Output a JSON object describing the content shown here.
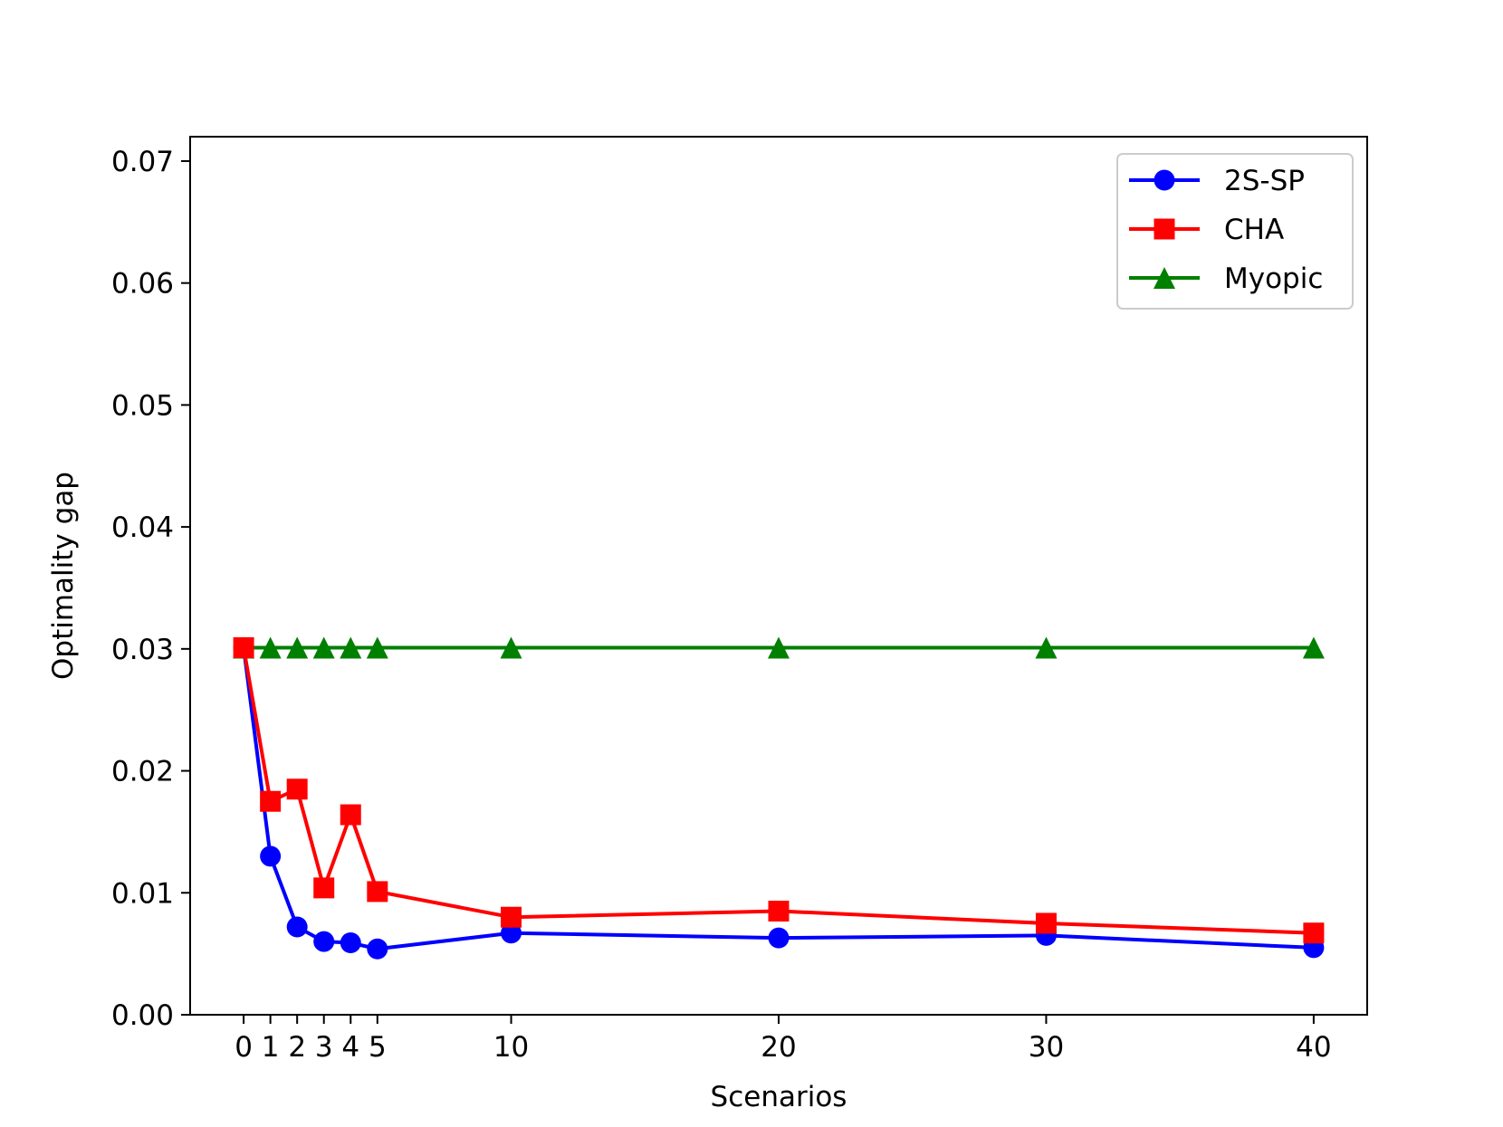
{
  "chart_data": {
    "type": "line",
    "title": "",
    "xlabel": "Scenarios",
    "ylabel": "Optimality gap",
    "x": [
      0,
      1,
      2,
      3,
      4,
      5,
      10,
      20,
      30,
      40
    ],
    "xticks": [
      0,
      1,
      2,
      3,
      4,
      5,
      10,
      20,
      30,
      40
    ],
    "xtick_labels": [
      "0",
      "1",
      "2",
      "3",
      "4",
      "5",
      "10",
      "20",
      "30",
      "40"
    ],
    "yticks": [
      0.0,
      0.01,
      0.02,
      0.03,
      0.04,
      0.05,
      0.06,
      0.07
    ],
    "ytick_labels": [
      "0.00",
      "0.01",
      "0.02",
      "0.03",
      "0.04",
      "0.05",
      "0.06",
      "0.07"
    ],
    "xlim": [
      -2,
      42
    ],
    "ylim": [
      0,
      0.072
    ],
    "grid": false,
    "legend_position": "top-right",
    "series": [
      {
        "name": "2S-SP",
        "color": "#0000ff",
        "marker": "circle",
        "values": [
          0.0301,
          0.013,
          0.0072,
          0.006,
          0.0059,
          0.0054,
          0.0067,
          0.0063,
          0.0065,
          0.0055
        ]
      },
      {
        "name": "CHA",
        "color": "#ff0000",
        "marker": "square",
        "values": [
          0.0301,
          0.0175,
          0.0185,
          0.0104,
          0.0164,
          0.0101,
          0.008,
          0.0085,
          0.0075,
          0.0067
        ]
      },
      {
        "name": "Myopic",
        "color": "#008000",
        "marker": "triangle",
        "values": [
          0.0301,
          0.0301,
          0.0301,
          0.0301,
          0.0301,
          0.0301,
          0.0301,
          0.0301,
          0.0301,
          0.0301
        ]
      }
    ]
  }
}
